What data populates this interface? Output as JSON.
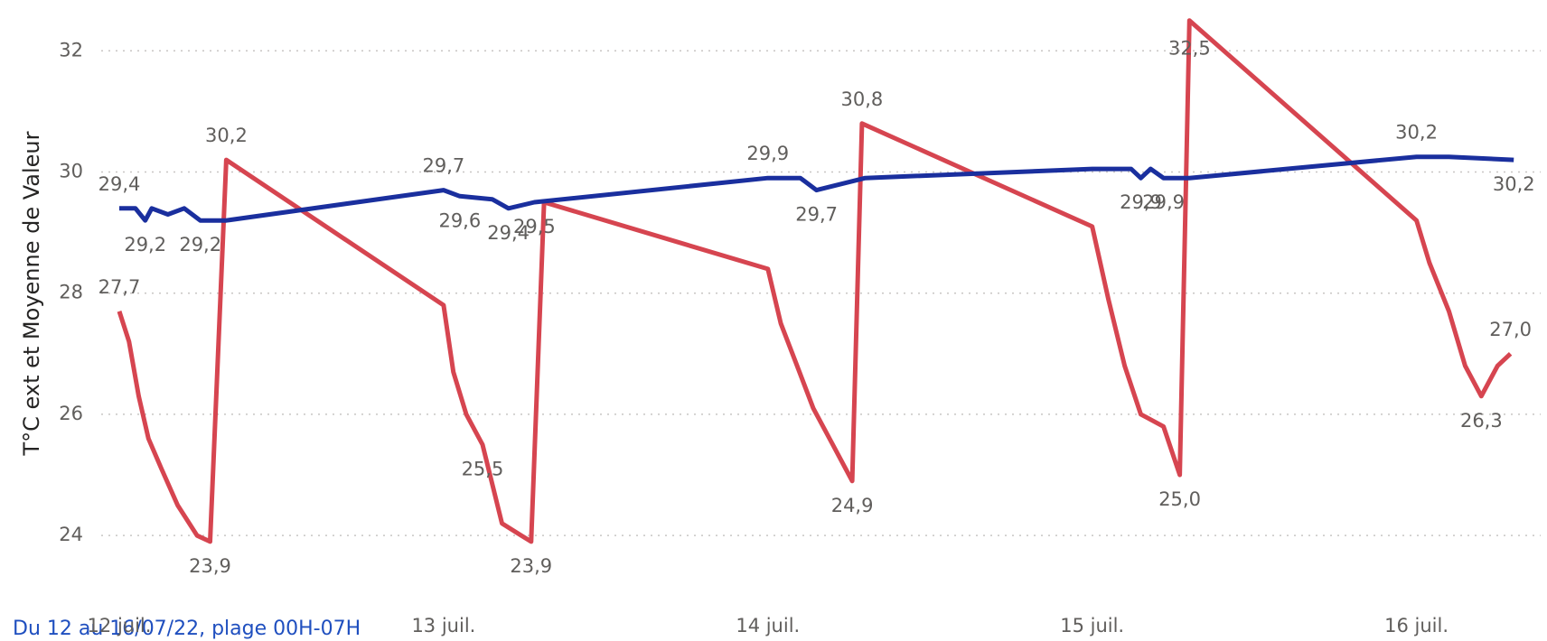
{
  "chart_data": {
    "type": "line",
    "y_label": "T°C ext et Moyenne de Valeur",
    "footnote": "Du 12 au 16/07/22, plage 00H-07H",
    "xlim": [
      12,
      16.33
    ],
    "xticks": [
      {
        "value": 12,
        "label": "12 juil."
      },
      {
        "value": 13,
        "label": "13 juil."
      },
      {
        "value": 14,
        "label": "14 juil."
      },
      {
        "value": 15,
        "label": "15 juil."
      },
      {
        "value": 16,
        "label": "16 juil."
      }
    ],
    "ylim": [
      23.6,
      32.6
    ],
    "yticks": [
      24,
      26,
      28,
      30,
      32
    ],
    "grid": true,
    "series": [
      {
        "name": "T°C ext",
        "color": "#d64550",
        "x": [
          12.0,
          12.03,
          12.06,
          12.09,
          12.13,
          12.18,
          12.24,
          12.28,
          12.33,
          13.0,
          13.03,
          13.07,
          13.12,
          13.18,
          13.24,
          13.27,
          13.31,
          14.0,
          14.04,
          14.09,
          14.14,
          14.2,
          14.26,
          14.29,
          15.0,
          15.05,
          15.1,
          15.15,
          15.22,
          15.27,
          15.3,
          16.0,
          16.04,
          16.1,
          16.15,
          16.2,
          16.25,
          16.29
        ],
        "values": [
          27.7,
          27.2,
          26.3,
          25.6,
          25.1,
          24.5,
          24.0,
          23.9,
          30.2,
          27.8,
          26.7,
          26.0,
          25.5,
          24.2,
          24.0,
          23.9,
          29.5,
          28.4,
          27.5,
          26.8,
          26.1,
          25.5,
          24.9,
          30.8,
          29.1,
          27.9,
          26.8,
          26.0,
          25.8,
          25.0,
          32.5,
          29.2,
          28.5,
          27.7,
          26.8,
          26.3,
          26.8,
          27.0
        ],
        "value_labels": [
          "27,7",
          null,
          null,
          null,
          null,
          null,
          null,
          "23,9",
          "30,2",
          null,
          null,
          null,
          "25,5",
          null,
          null,
          "23,9",
          null,
          null,
          null,
          null,
          null,
          null,
          "24,9",
          "30,8",
          null,
          null,
          null,
          null,
          null,
          "25,0",
          "32,5",
          null,
          null,
          null,
          null,
          "26,3",
          null,
          "27,0"
        ]
      },
      {
        "name": "Moyenne de Valeur",
        "color": "#1a2f9e",
        "x": [
          12.0,
          12.05,
          12.08,
          12.1,
          12.15,
          12.2,
          12.25,
          12.33,
          13.0,
          13.05,
          13.15,
          13.2,
          13.28,
          14.0,
          14.1,
          14.15,
          14.3,
          15.0,
          15.12,
          15.15,
          15.18,
          15.22,
          15.3,
          16.0,
          16.1,
          16.3
        ],
        "values": [
          29.4,
          29.4,
          29.2,
          29.4,
          29.3,
          29.4,
          29.2,
          29.2,
          29.7,
          29.6,
          29.55,
          29.4,
          29.5,
          29.9,
          29.9,
          29.7,
          29.9,
          30.05,
          30.05,
          29.9,
          30.05,
          29.9,
          29.9,
          30.25,
          30.25,
          30.2
        ],
        "value_labels": [
          "29,4",
          null,
          "29,2",
          null,
          null,
          null,
          "29,2",
          null,
          "29,7",
          "29,6",
          null,
          "29,4",
          "29,5",
          "29,9",
          null,
          "29,7",
          null,
          null,
          null,
          "29,9",
          null,
          "29,9",
          null,
          "30,2",
          null,
          "30,2"
        ]
      }
    ]
  }
}
